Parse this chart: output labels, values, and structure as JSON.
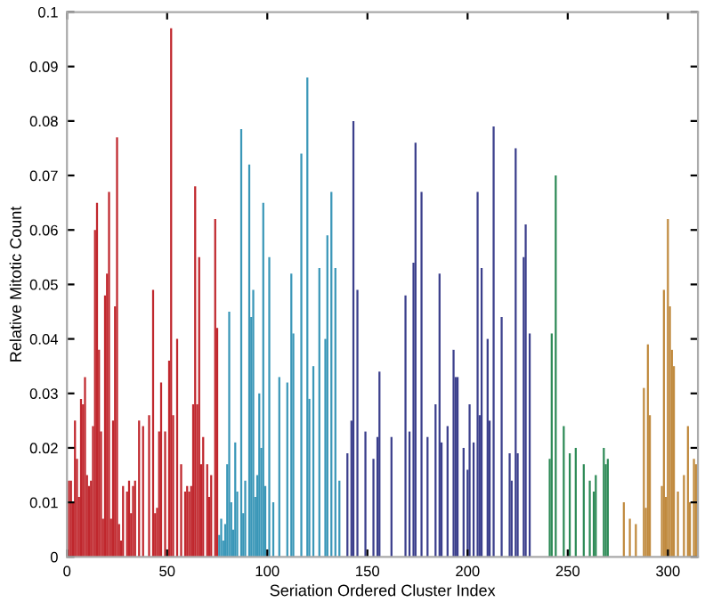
{
  "chart_data": {
    "type": "bar",
    "xlabel": "Seriation Ordered Cluster Index",
    "ylabel": "Relative Mitotic Count",
    "xlim": [
      0,
      315
    ],
    "ylim": [
      0,
      0.1
    ],
    "xticks": [
      0,
      50,
      100,
      150,
      200,
      250,
      300
    ],
    "yticks": [
      0,
      0.01,
      0.02,
      0.03,
      0.04,
      0.05,
      0.06,
      0.07,
      0.08,
      0.09,
      0.1
    ],
    "grid": false,
    "legend": false,
    "series": [
      {
        "color": "#c0272d",
        "x": [
          1,
          2,
          3,
          4,
          5,
          6,
          7,
          8,
          9,
          10,
          11,
          12,
          13,
          14,
          15,
          16,
          17,
          18,
          19,
          20,
          21,
          22,
          23,
          24,
          25,
          26,
          27,
          28,
          30,
          31,
          32,
          33,
          34,
          36,
          38,
          41,
          43,
          44,
          45,
          46,
          47,
          49,
          51,
          52,
          53,
          55,
          57,
          59,
          60,
          61,
          62,
          63,
          64,
          65,
          66,
          67,
          68,
          70,
          71,
          72,
          74,
          75
        ],
        "values": [
          0.014,
          0.014,
          0.01,
          0.025,
          0.018,
          0.011,
          0.029,
          0.028,
          0.033,
          0.015,
          0.013,
          0.014,
          0.024,
          0.06,
          0.065,
          0.038,
          0.023,
          0.007,
          0.048,
          0.052,
          0.067,
          0.007,
          0.025,
          0.046,
          0.077,
          0.006,
          0.003,
          0.013,
          0.012,
          0.014,
          0.008,
          0.013,
          0.014,
          0.025,
          0.024,
          0.026,
          0.049,
          0.008,
          0.009,
          0.023,
          0.032,
          0.023,
          0.036,
          0.097,
          0.026,
          0.04,
          0.017,
          0.012,
          0.013,
          0.012,
          0.013,
          0.028,
          0.068,
          0.028,
          0.055,
          0.017,
          0.022,
          0.017,
          0.011,
          0.015,
          0.062,
          0.042
        ]
      },
      {
        "color": "#3a97b8",
        "x": [
          76,
          77,
          78,
          79,
          80,
          81,
          82,
          83,
          84,
          85,
          87,
          88,
          89,
          91,
          92,
          93,
          94,
          95,
          96,
          97,
          98,
          99,
          101,
          103,
          106,
          110,
          112,
          113,
          117,
          120,
          121,
          123,
          126,
          129,
          130,
          132,
          134,
          136
        ],
        "values": [
          0.004,
          0.007,
          0.003,
          0.006,
          0.017,
          0.045,
          0.01,
          0.005,
          0.021,
          0.012,
          0.0785,
          0.008,
          0.014,
          0.072,
          0.044,
          0.049,
          0.011,
          0.015,
          0.03,
          0.02,
          0.065,
          0.013,
          0.055,
          0.01,
          0.033,
          0.032,
          0.052,
          0.041,
          0.074,
          0.088,
          0.029,
          0.035,
          0.053,
          0.04,
          0.059,
          0.067,
          0.053,
          0.014
        ]
      },
      {
        "color": "#3b3f8c",
        "x": [
          140,
          142,
          143,
          145,
          149,
          153,
          155,
          156,
          162,
          169,
          171,
          173,
          174,
          177,
          180,
          184,
          186,
          187,
          190,
          193,
          194,
          195,
          198,
          200,
          201,
          203,
          205,
          206,
          207,
          210,
          211,
          213,
          217,
          221,
          222,
          224,
          225,
          228,
          229,
          231
        ],
        "values": [
          0.019,
          0.025,
          0.08,
          0.049,
          0.023,
          0.018,
          0.022,
          0.034,
          0.022,
          0.048,
          0.023,
          0.054,
          0.076,
          0.067,
          0.022,
          0.028,
          0.052,
          0.021,
          0.024,
          0.038,
          0.033,
          0.033,
          0.02,
          0.016,
          0.028,
          0.021,
          0.067,
          0.026,
          0.053,
          0.04,
          0.025,
          0.079,
          0.044,
          0.019,
          0.014,
          0.075,
          0.019,
          0.055,
          0.061,
          0.041
        ]
      },
      {
        "color": "#2e8b57",
        "x": [
          241,
          242,
          244,
          248,
          251,
          254,
          258,
          261,
          263,
          264,
          268,
          269,
          270
        ],
        "values": [
          0.018,
          0.041,
          0.07,
          0.024,
          0.019,
          0.02,
          0.017,
          0.014,
          0.012,
          0.015,
          0.02,
          0.017,
          0.018
        ]
      },
      {
        "color": "#c08a3e",
        "x": [
          278,
          281,
          284,
          288,
          289,
          290,
          291,
          297,
          298,
          299,
          300,
          301,
          302,
          303,
          305,
          308,
          310,
          311,
          313,
          314
        ],
        "values": [
          0.01,
          0.007,
          0.006,
          0.031,
          0.009,
          0.039,
          0.026,
          0.013,
          0.049,
          0.011,
          0.062,
          0.046,
          0.038,
          0.035,
          0.012,
          0.015,
          0.024,
          0.01,
          0.018,
          0.017
        ]
      }
    ]
  }
}
